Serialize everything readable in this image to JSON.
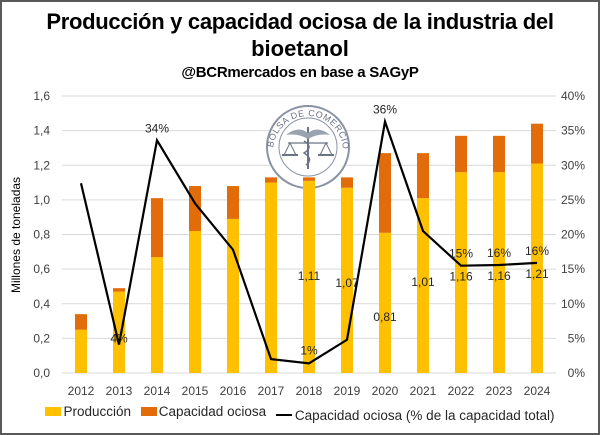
{
  "header": {
    "title_line1": "Producción y capacidad ociosa de la industria del",
    "title_line2": "bioetanol",
    "subtitle": "@BCRmercados en base a SAGyP"
  },
  "watermark": {
    "text": "BOLSA DE COMERCIO DE ROSARIO",
    "icon": "caduceus-scales-seal-icon"
  },
  "colors": {
    "produccion": "#FFC000",
    "capacidad_ociosa": "#E36C0A",
    "line": "#000000",
    "grid": "#D9D9D9"
  },
  "chart_data": {
    "type": "bar",
    "stacked": true,
    "title": "Producción y capacidad ociosa de la industria del bioetanol",
    "subtitle": "@BCRmercados en base a SAGyP",
    "xlabel": "",
    "ylabel": "Millones de toneladas",
    "y2label": "",
    "categories": [
      "2012",
      "2013",
      "2014",
      "2015",
      "2016",
      "2017",
      "2018",
      "2019",
      "2020",
      "2021",
      "2022",
      "2023",
      "2024"
    ],
    "ylim": [
      0,
      1.6
    ],
    "y_ticks": [
      "0,0",
      "0,2",
      "0,4",
      "0,6",
      "0,8",
      "1,0",
      "1,2",
      "1,4",
      "1,6"
    ],
    "y2lim": [
      0,
      40
    ],
    "y2_ticks": [
      "0%",
      "5%",
      "10%",
      "15%",
      "20%",
      "25%",
      "30%",
      "35%",
      "40%"
    ],
    "grid": true,
    "legend_position": "bottom",
    "series": [
      {
        "name": "Producción",
        "type": "bar",
        "axis": "left",
        "values": [
          0.25,
          0.47,
          0.67,
          0.82,
          0.89,
          1.1,
          1.11,
          1.07,
          0.81,
          1.01,
          1.16,
          1.16,
          1.21
        ],
        "data_labels": [
          "",
          "",
          "",
          "",
          "",
          "",
          "1,11",
          "1,07",
          "0,81",
          "1,01",
          "1,16",
          "1,16",
          "1,21"
        ]
      },
      {
        "name": "Capacidad ociosa",
        "type": "bar",
        "axis": "left",
        "values": [
          0.09,
          0.02,
          0.34,
          0.26,
          0.19,
          0.03,
          0.02,
          0.06,
          0.46,
          0.26,
          0.21,
          0.21,
          0.23
        ]
      },
      {
        "name": "Capacidad ociosa (% de la capacidad total)",
        "type": "line",
        "axis": "right",
        "values": [
          27.4,
          4.1,
          33.6,
          24.5,
          17.8,
          2.0,
          1.4,
          4.8,
          36.3,
          20.5,
          15.5,
          15.6,
          15.9
        ],
        "data_labels": [
          "",
          "4%",
          "34%",
          "",
          "",
          "",
          "1%",
          "",
          "36%",
          "",
          "15%",
          "16%",
          "16%"
        ]
      }
    ]
  },
  "legend": {
    "items": [
      {
        "label": "Producción"
      },
      {
        "label": "Capacidad ociosa"
      },
      {
        "label": "Capacidad ociosa (% de la capacidad total)"
      }
    ]
  }
}
